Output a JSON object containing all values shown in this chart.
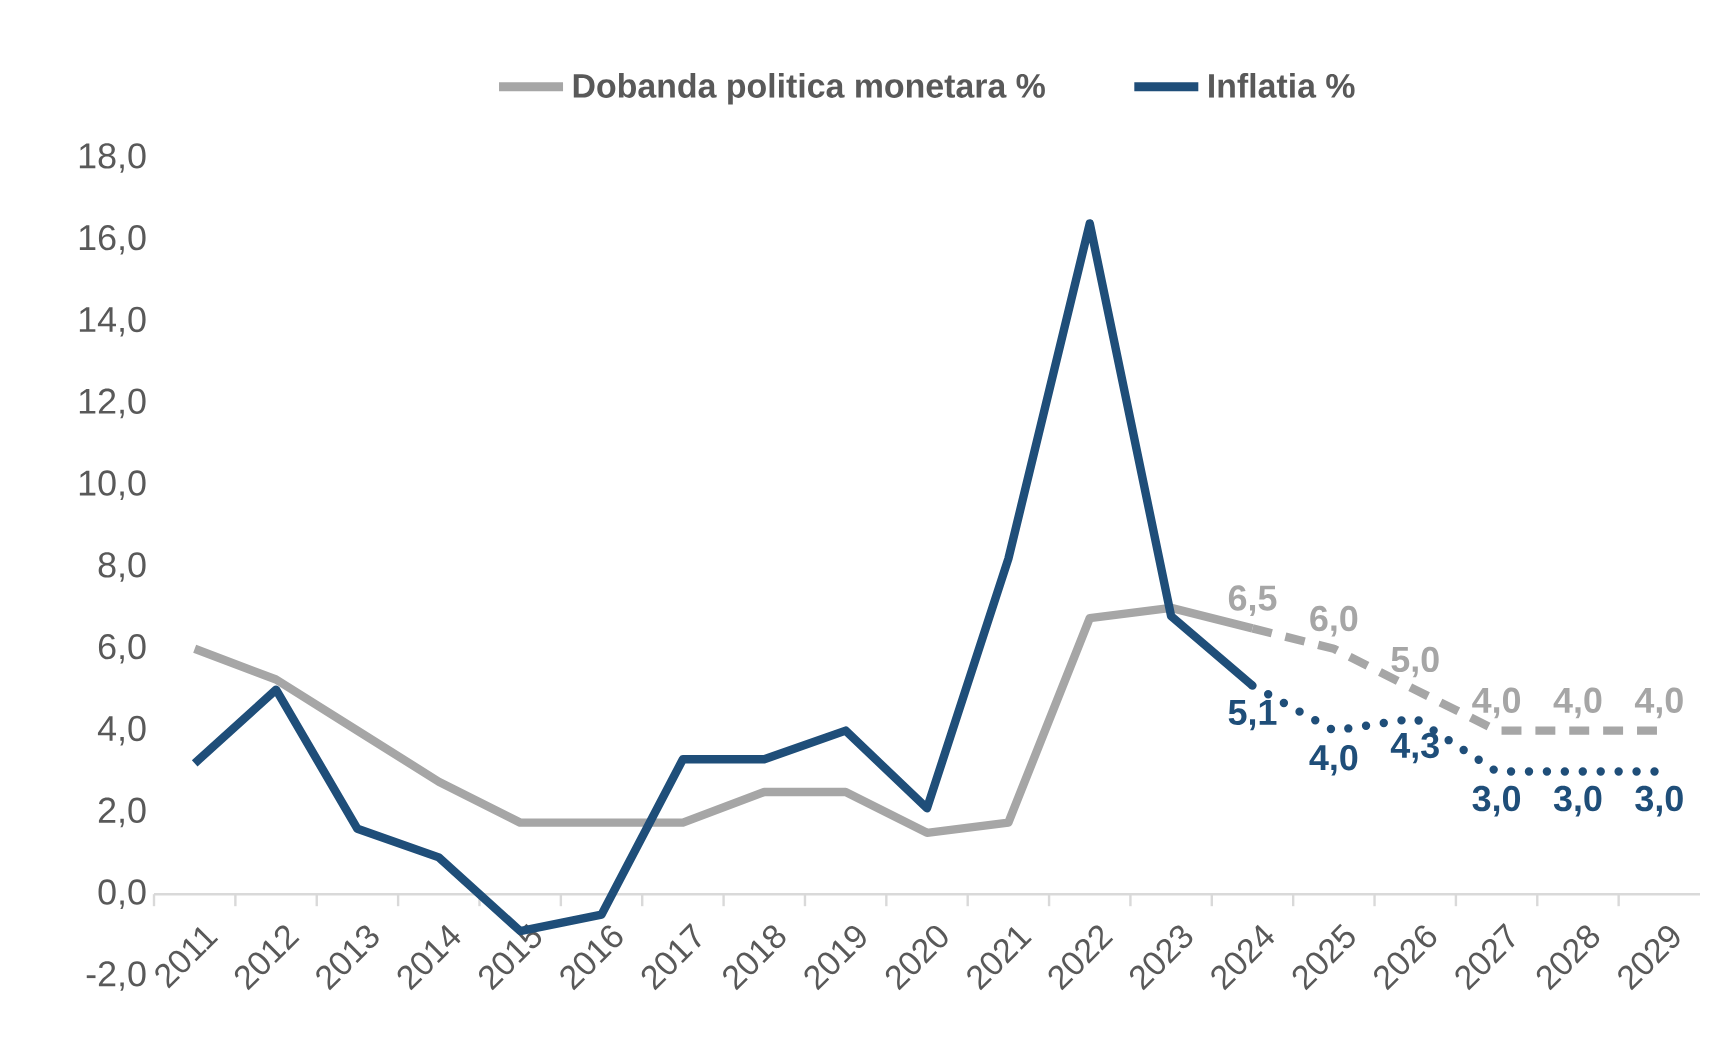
{
  "chart_data": {
    "type": "line",
    "categories": [
      "2011",
      "2012",
      "2013",
      "2014",
      "2015",
      "2016",
      "2017",
      "2018",
      "2019",
      "2020",
      "2021",
      "2022",
      "2023",
      "2024",
      "2025",
      "2026",
      "2027",
      "2028",
      "2029"
    ],
    "series": [
      {
        "name": "Dobanda politica monetara %",
        "color": "#a6a6a6",
        "values": [
          6.0,
          5.25,
          4.0,
          2.75,
          1.75,
          1.75,
          1.75,
          2.5,
          2.5,
          1.5,
          1.75,
          6.75,
          7.0,
          6.5,
          null,
          null,
          null,
          null,
          null
        ]
      },
      {
        "name": "Inflatia %",
        "color": "#1f4e79",
        "values": [
          3.2,
          5.0,
          1.6,
          0.9,
          -0.9,
          -0.5,
          3.3,
          3.3,
          4.0,
          2.1,
          8.2,
          16.4,
          6.8,
          5.1,
          null,
          null,
          null,
          null,
          null
        ]
      },
      {
        "color": "#a6a6a6",
        "line_style": "dashed",
        "values": [
          null,
          null,
          null,
          null,
          null,
          null,
          null,
          null,
          null,
          null,
          null,
          null,
          null,
          6.5,
          6.0,
          5.0,
          4.0,
          4.0,
          4.0
        ],
        "value_labels": [
          null,
          null,
          null,
          null,
          null,
          null,
          null,
          null,
          null,
          null,
          null,
          null,
          null,
          "6,5",
          "6,0",
          "5,0",
          "4,0",
          "4,0",
          "4,0"
        ]
      },
      {
        "color": "#1f4e79",
        "line_style": "dotted",
        "values": [
          null,
          null,
          null,
          null,
          null,
          null,
          null,
          null,
          null,
          null,
          null,
          null,
          null,
          5.1,
          4.0,
          4.3,
          3.0,
          3.0,
          3.0
        ],
        "value_labels": [
          null,
          null,
          null,
          null,
          null,
          null,
          null,
          null,
          null,
          null,
          null,
          null,
          null,
          "5,1",
          "4,0",
          "4,3",
          "3,0",
          "3,0",
          "3,0"
        ]
      }
    ],
    "ylim": [
      -2,
      18
    ],
    "yticks": [
      {
        "value": -2,
        "label": "-2,0"
      },
      {
        "value": 0,
        "label": "0,0"
      },
      {
        "value": 2,
        "label": "2,0"
      },
      {
        "value": 4,
        "label": "4,0"
      },
      {
        "value": 6,
        "label": "6,0"
      },
      {
        "value": 8,
        "label": "8,0"
      },
      {
        "value": 10,
        "label": "10,0"
      },
      {
        "value": 12,
        "label": "12,0"
      },
      {
        "value": 14,
        "label": "14,0"
      },
      {
        "value": 16,
        "label": "16,0"
      },
      {
        "value": 18,
        "label": "18,0"
      }
    ],
    "grid": false,
    "legend": "top",
    "marker": "none"
  }
}
